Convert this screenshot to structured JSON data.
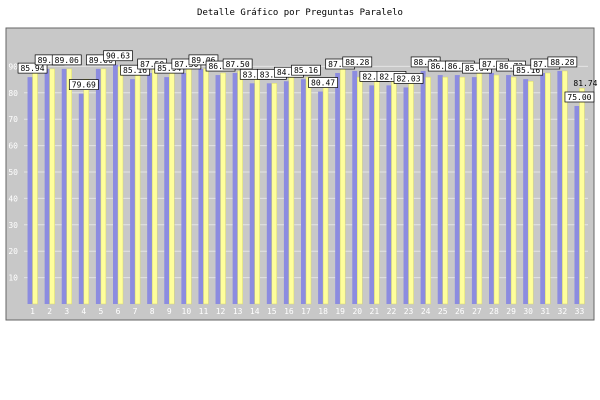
{
  "chart_data": {
    "type": "bar",
    "title": "Detalle Gráfico por Preguntas Paralelo",
    "xlabel": "",
    "ylabel": "",
    "ylim": [
      0,
      100
    ],
    "yticks": [
      10,
      20,
      30,
      40,
      50,
      60,
      70,
      80,
      90
    ],
    "grid": true,
    "categories": [
      "1",
      "2",
      "3",
      "4",
      "5",
      "6",
      "7",
      "8",
      "9",
      "10",
      "11",
      "12",
      "13",
      "14",
      "15",
      "16",
      "17",
      "18",
      "19",
      "20",
      "21",
      "22",
      "23",
      "24",
      "25",
      "26",
      "27",
      "28",
      "29",
      "30",
      "31",
      "32",
      "33"
    ],
    "series": [
      {
        "values": [
          85.94,
          89.06,
          89.06,
          79.69,
          89.06,
          90.63,
          85.16,
          87.5,
          85.94,
          87.5,
          89.06,
          86.72,
          87.5,
          83.59,
          83.59,
          84.38,
          85.16,
          80.47,
          87.5,
          88.28,
          82.81,
          82.81,
          82.03,
          88.28,
          86.72,
          86.72,
          85.94,
          87.5,
          86.72,
          85.16,
          87.5,
          88.28,
          75.0
        ]
      },
      {
        "values": [
          89.06,
          89.06,
          89.06,
          85.16,
          89.06,
          89.84,
          86.72,
          89.06,
          89.06,
          89.06,
          89.06,
          87.5,
          88.28,
          85.94,
          83.59,
          85.94,
          85.94,
          83.59,
          89.06,
          85.94,
          85.94,
          84.38,
          85.94,
          85.94,
          85.94,
          85.94,
          87.5,
          86.72,
          85.94,
          84.38,
          87.5,
          88.28,
          81.74
        ]
      }
    ],
    "label_text": [
      "85.94",
      "89.06",
      "89.06",
      "79.69",
      "89.06",
      "90.63",
      "85.16",
      "87.50",
      "85.94",
      "87.50",
      "89.06",
      "86.72",
      "87.50",
      "83.59",
      "83.59",
      "84.38",
      "85.16",
      "80.47",
      "87.50",
      "88.28",
      "82.81",
      "82.81",
      "82.03",
      "88.28",
      "86.72",
      "86.72",
      "85.94",
      "87.50",
      "86.72",
      "85.16",
      "87.50",
      "88.28",
      "75.00",
      "81.74"
    ],
    "colors": {
      "series_a": "#8c8ce0",
      "series_b": "#fefe9c",
      "plot_bg": "#c8c8c8",
      "frame": "#666666"
    }
  }
}
